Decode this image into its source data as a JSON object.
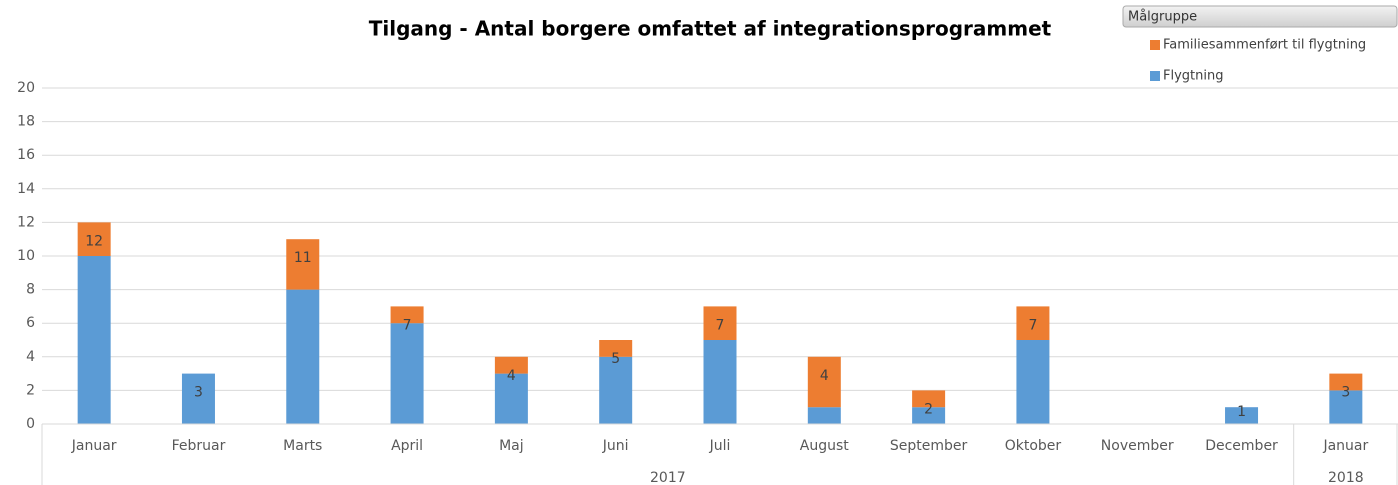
{
  "chart_data": {
    "type": "stacked_bar",
    "title": "Tilgang - Antal borgere omfattet af integrationsprogrammet",
    "categories": [
      "Januar",
      "Februar",
      "Marts",
      "April",
      "Maj",
      "Juni",
      "Juli",
      "August",
      "September",
      "Oktober",
      "November",
      "December",
      "Januar"
    ],
    "groups": [
      {
        "label": "2017",
        "count": 12
      },
      {
        "label": "2018",
        "count": 1
      }
    ],
    "series": [
      {
        "name": "Flygtning",
        "color": "#5b9bd5",
        "values": [
          10,
          3,
          8,
          6,
          3,
          4,
          5,
          1,
          1,
          5,
          null,
          1,
          2
        ]
      },
      {
        "name": "Familiesammenført til flygtning",
        "color": "#ed7d31",
        "values": [
          2,
          0,
          3,
          1,
          1,
          1,
          2,
          3,
          1,
          2,
          null,
          0,
          1
        ]
      }
    ],
    "total_labels": [
      12,
      3,
      11,
      7,
      4,
      5,
      7,
      4,
      2,
      7,
      null,
      1,
      3
    ],
    "legend_title": "Målgruppe",
    "legend": "top-right",
    "ylim": [
      0,
      20
    ],
    "yticks": [
      0,
      2,
      4,
      6,
      8,
      10,
      12,
      14,
      16,
      18,
      20
    ],
    "grid": true
  }
}
